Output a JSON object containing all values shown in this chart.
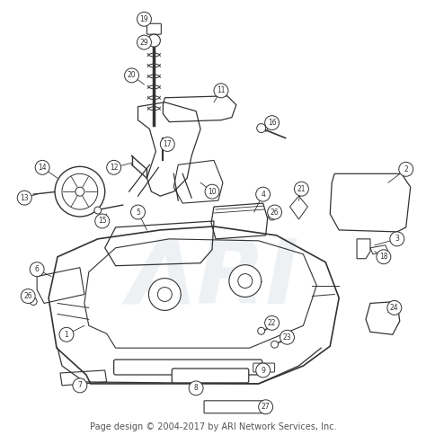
{
  "background_color": "#ffffff",
  "footer_text": "Page design © 2004-2017 by ARI Network Services, Inc.",
  "footer_fontsize": 7,
  "watermark_text": "ARI",
  "watermark_color": "#d0d8e0",
  "watermark_fontsize": 72,
  "watermark_alpha": 0.35,
  "line_color": "#333333",
  "circle_color": "#ffffff",
  "circle_edge": "#333333"
}
